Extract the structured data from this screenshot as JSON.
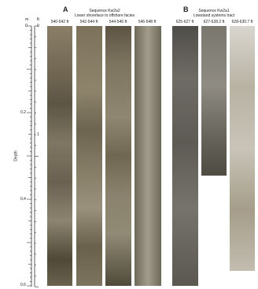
{
  "scale": {
    "unit_m": "m",
    "unit_ft": "ft",
    "axis_label": "Depth",
    "m_labels": [
      "0",
      "0.2",
      "0.4",
      "0.6"
    ],
    "ft_labels": [
      "0",
      "1"
    ]
  },
  "panel_a": {
    "letter": "A",
    "sequence": "Sequence Kw2a2",
    "facies": "Lower shoreface to offshore facies",
    "columns": [
      "540-542 ft",
      "542-544 ft",
      "544-546 ft",
      "546-548 ft"
    ]
  },
  "panel_b": {
    "letter": "B",
    "sequence": "Sequence Kw2a1",
    "facies": "Lowstand systems tract",
    "columns": [
      "625-627 ft",
      "627-628.2 ft",
      "628-630.7 ft"
    ]
  }
}
